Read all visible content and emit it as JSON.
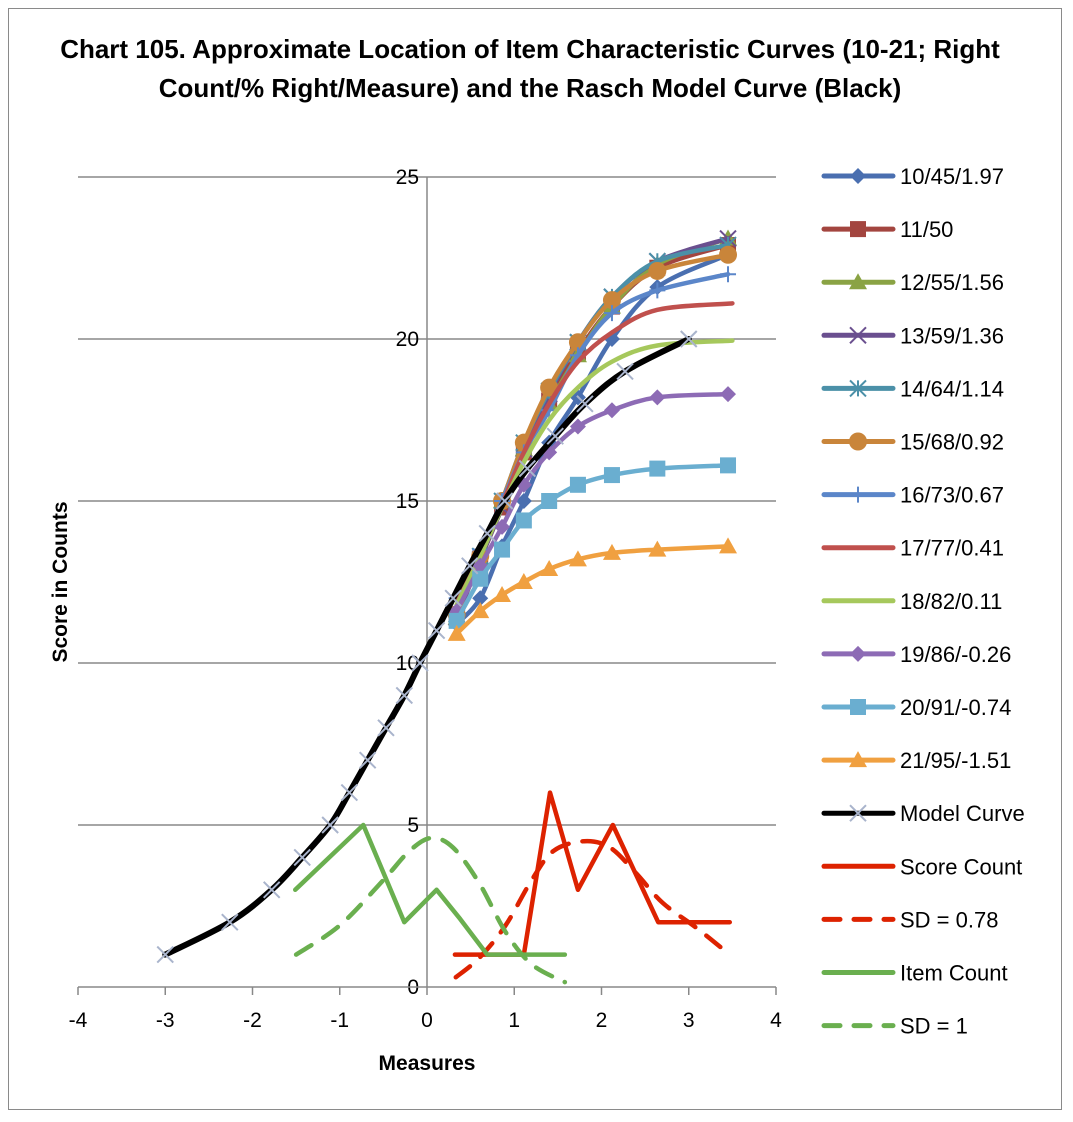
{
  "chart_data": {
    "type": "line",
    "title": "Chart 105. Approximate Location of Item Characteristic Curves (10-21; Right Count/% Right/Measure) and the Rasch Model Curve (Black)",
    "xlabel": "Measures",
    "ylabel": "Score in Counts",
    "xlim": [
      -4,
      4
    ],
    "ylim": [
      0,
      25
    ],
    "xticks": [
      "-4",
      "-3",
      "-2",
      "-1",
      "0",
      "1",
      "2",
      "3",
      "4"
    ],
    "yticks": [
      "0",
      "5",
      "10",
      "15",
      "20",
      "25"
    ],
    "grid": "horizontal major",
    "legend": "right",
    "item_x": [
      0.34,
      0.61,
      0.86,
      1.11,
      1.4,
      1.73,
      2.12,
      2.64,
      3.45
    ],
    "series": [
      {
        "name": "10/45/1.97",
        "color": "#4a6fb0",
        "marker": "diamond",
        "y": [
          11.2,
          12.0,
          13.6,
          15.0,
          16.8,
          18.2,
          20.0,
          21.6,
          22.6
        ]
      },
      {
        "name": "11/50",
        "color": "#a3453f",
        "marker": "square",
        "y": [
          11.5,
          13.2,
          14.8,
          16.5,
          18.1,
          19.6,
          21.0,
          22.2,
          22.9
        ]
      },
      {
        "name": "12/55/1.56",
        "color": "#8aa344",
        "marker": "triangle",
        "y": [
          11.4,
          13.2,
          15.0,
          16.6,
          18.0,
          19.5,
          21.0,
          22.3,
          23.1
        ]
      },
      {
        "name": "13/59/1.36",
        "color": "#6a4f8f",
        "marker": "x",
        "y": [
          11.4,
          13.2,
          14.8,
          16.6,
          18.3,
          19.9,
          21.3,
          22.4,
          23.1
        ]
      },
      {
        "name": "14/64/1.14",
        "color": "#4b90a8",
        "marker": "star",
        "y": [
          11.5,
          13.3,
          15.0,
          16.8,
          18.4,
          19.9,
          21.3,
          22.4,
          22.9
        ]
      },
      {
        "name": "15/68/0.92",
        "color": "#c9853a",
        "marker": "circle",
        "y": [
          11.5,
          13.3,
          15.0,
          16.8,
          18.5,
          19.9,
          21.2,
          22.1,
          22.6
        ]
      },
      {
        "name": "16/73/0.67",
        "color": "#5b86c9",
        "marker": "plus",
        "y": [
          12.0,
          13.5,
          15.0,
          16.5,
          17.8,
          19.5,
          20.8,
          21.5,
          22.0
        ]
      },
      {
        "name": "17/77/0.41",
        "color": "#c0504d",
        "marker": "none",
        "x": [
          0.34,
          0.61,
          0.86,
          1.11,
          1.4,
          1.73,
          2.12,
          2.64,
          3.5
        ],
        "y": [
          12.0,
          13.5,
          14.9,
          16.5,
          18.0,
          19.3,
          20.2,
          20.9,
          21.1
        ]
      },
      {
        "name": "18/82/0.11",
        "color": "#a6c85c",
        "marker": "none",
        "x": [
          0.34,
          0.61,
          0.86,
          1.11,
          1.4,
          1.73,
          2.12,
          2.64,
          3.5
        ],
        "y": [
          11.8,
          13.3,
          14.8,
          16.2,
          17.5,
          18.5,
          19.3,
          19.8,
          19.95
        ]
      },
      {
        "name": "19/86/-0.26",
        "color": "#8d6bb5",
        "marker": "diamond",
        "y": [
          11.6,
          13.0,
          14.2,
          15.5,
          16.5,
          17.3,
          17.8,
          18.2,
          18.3
        ]
      },
      {
        "name": "20/91/-0.74",
        "color": "#6aaed0",
        "marker": "square",
        "y": [
          11.3,
          12.6,
          13.5,
          14.4,
          15.0,
          15.5,
          15.8,
          16.0,
          16.1
        ]
      },
      {
        "name": "21/95/-1.51",
        "color": "#f0a040",
        "marker": "triangle",
        "y": [
          10.9,
          11.6,
          12.1,
          12.5,
          12.9,
          13.2,
          13.4,
          13.5,
          13.6
        ]
      },
      {
        "name": "Model Curve",
        "color": "#000000",
        "marker": "x",
        "marker_color": "#a9b4cc",
        "x": [
          -3.0,
          -2.26,
          -1.78,
          -1.43,
          -1.11,
          -0.89,
          -0.68,
          -0.47,
          -0.26,
          -0.08,
          0.11,
          0.3,
          0.49,
          0.69,
          0.89,
          1.15,
          1.47,
          1.81,
          2.27,
          3.0
        ],
        "y": [
          1,
          2,
          3,
          4,
          5,
          6,
          7,
          8,
          9,
          10,
          11,
          12,
          13,
          14,
          15,
          16,
          17,
          18,
          19,
          20
        ]
      },
      {
        "name": "Score Count",
        "color": "#dd2200",
        "marker": "none",
        "x": [
          0.32,
          1.11,
          1.41,
          1.73,
          2.13,
          2.65,
          3.47
        ],
        "y": [
          1,
          1,
          6,
          3,
          5,
          2,
          2
        ]
      },
      {
        "name": "SD = 0.78",
        "color": "#dd2200",
        "marker": "none",
        "dash": true,
        "x": [
          0.33,
          0.6,
          0.9,
          1.2,
          1.45,
          1.8,
          2.1,
          2.4,
          2.7,
          3.1,
          3.47
        ],
        "y": [
          0.3,
          0.9,
          1.9,
          3.3,
          4.2,
          4.5,
          4.3,
          3.5,
          2.6,
          1.8,
          1.0
        ]
      },
      {
        "name": "Item Count",
        "color": "#6aaf4f",
        "marker": "none",
        "x": [
          -1.51,
          -0.73,
          -0.26,
          0.11,
          0.38,
          0.69,
          1.58
        ],
        "y": [
          3,
          5,
          2,
          3,
          2.1,
          1,
          1
        ]
      },
      {
        "name": "SD = 1",
        "color": "#6aaf4f",
        "marker": "none",
        "dash": true,
        "x": [
          -1.5,
          -1.0,
          -0.5,
          -0.2,
          0.05,
          0.3,
          0.6,
          0.9,
          1.2,
          1.58
        ],
        "y": [
          1.0,
          1.9,
          3.3,
          4.2,
          4.6,
          4.3,
          3.2,
          1.7,
          0.7,
          0.15
        ]
      }
    ]
  }
}
